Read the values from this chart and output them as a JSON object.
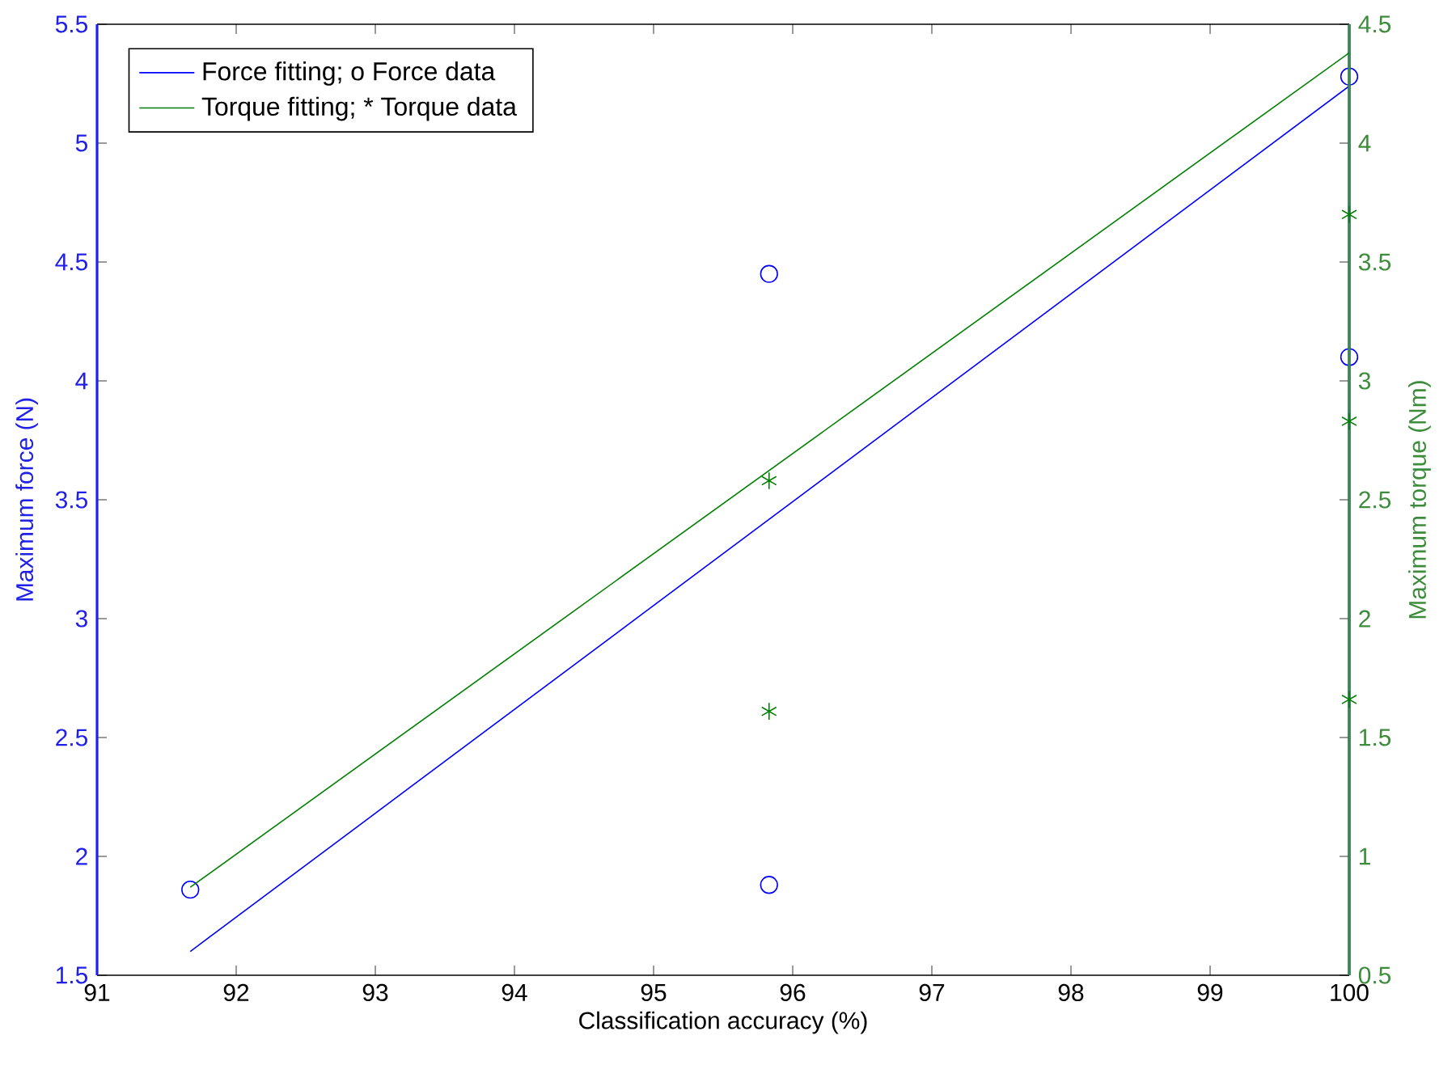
{
  "chart_data": {
    "type": "line",
    "xlabel": "Classification accuracy (%)",
    "ylabel": "Maximum force (N)",
    "y2label": "Maximum torque (Nm)",
    "xlim": [
      91,
      100
    ],
    "xticks": [
      91,
      92,
      93,
      94,
      95,
      96,
      97,
      98,
      99,
      100
    ],
    "ylim": [
      1.5,
      5.5
    ],
    "yticks": [
      1.5,
      2,
      2.5,
      3,
      3.5,
      4,
      4.5,
      5,
      5.5
    ],
    "y2lim": [
      0.5,
      4.5
    ],
    "y2ticks": [
      0.5,
      1,
      1.5,
      2,
      2.5,
      3,
      3.5,
      4,
      4.5
    ],
    "grid": false,
    "legend": "top left",
    "series": [
      {
        "name": "Force fitting;  o Force data",
        "marker": "none",
        "color": "#0000ff",
        "x": [
          91.67,
          100
        ],
        "values": [
          1.6,
          5.24
        ]
      },
      {
        "type": "scatter",
        "marker": "circle",
        "color": "#0000ff",
        "x": [
          91.67,
          95.83,
          95.83,
          100,
          100
        ],
        "values": [
          1.86,
          4.45,
          1.88,
          5.28,
          4.1
        ]
      },
      {
        "name": "Torque fitting;  * Torque data",
        "marker": "none",
        "axis": "y2",
        "color": "#008000",
        "x": [
          91.67,
          100
        ],
        "values": [
          0.87,
          4.38
        ]
      },
      {
        "type": "scatter",
        "marker": "cross",
        "axis": "y2",
        "color": "#008000",
        "x": [
          95.83,
          95.83,
          100,
          100,
          100
        ],
        "values": [
          2.58,
          1.61,
          3.7,
          2.83,
          1.66
        ]
      }
    ]
  }
}
